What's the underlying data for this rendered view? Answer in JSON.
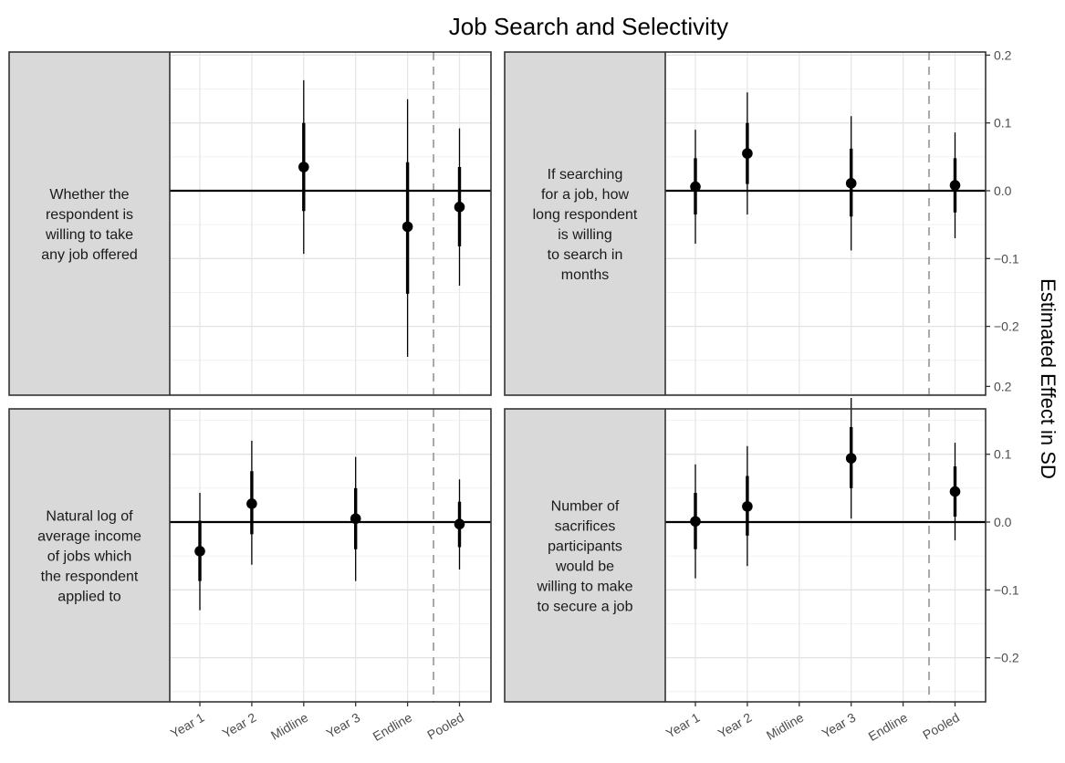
{
  "chart_data": {
    "type": "scatter",
    "title": "Job Search and Selectivity",
    "ylabel": "Estimated Effect in SD",
    "xlabel": "",
    "categories": [
      "Year 1",
      "Year 2",
      "Midline",
      "Year 3",
      "Endline",
      "Pooled"
    ],
    "yticks": [
      0.2,
      0.1,
      0.0,
      -0.1,
      -0.2
    ],
    "ytick_labels": [
      "0.2",
      "0.1",
      "0.0",
      "−0.1",
      "−0.2"
    ],
    "ylim": [
      -0.265,
      0.2
    ],
    "grid": true,
    "reference_line_y": 0,
    "dashed_separator_between": [
      "Endline",
      "Pooled"
    ],
    "panels": [
      {
        "label_lines": [
          "Whether the",
          "respondent is",
          "willing to take",
          "any job offered"
        ],
        "points": [
          {
            "x": "Midline",
            "estimate": 0.035,
            "ci90": [
              -0.03,
              0.1
            ],
            "ci95": [
              -0.093,
              0.163
            ]
          },
          {
            "x": "Endline",
            "estimate": -0.053,
            "ci90": [
              -0.152,
              0.042
            ],
            "ci95": [
              -0.245,
              0.135
            ]
          },
          {
            "x": "Pooled",
            "estimate": -0.024,
            "ci90": [
              -0.082,
              0.035
            ],
            "ci95": [
              -0.14,
              0.092
            ]
          }
        ]
      },
      {
        "label_lines": [
          "If searching",
          "for a job, how",
          "long respondent",
          "is willing",
          "to search in",
          "months"
        ],
        "points": [
          {
            "x": "Year 1",
            "estimate": 0.006,
            "ci90": [
              -0.035,
              0.048
            ],
            "ci95": [
              -0.078,
              0.09
            ]
          },
          {
            "x": "Year 2",
            "estimate": 0.055,
            "ci90": [
              0.01,
              0.1
            ],
            "ci95": [
              -0.035,
              0.145
            ]
          },
          {
            "x": "Year 3",
            "estimate": 0.011,
            "ci90": [
              -0.038,
              0.062
            ],
            "ci95": [
              -0.088,
              0.11
            ]
          },
          {
            "x": "Pooled",
            "estimate": 0.008,
            "ci90": [
              -0.032,
              0.048
            ],
            "ci95": [
              -0.07,
              0.086
            ]
          }
        ]
      },
      {
        "label_lines": [
          "Natural log of",
          "average income",
          "of jobs which",
          "the respondent",
          "applied to"
        ],
        "points": [
          {
            "x": "Year 1",
            "estimate": -0.043,
            "ci90": [
              -0.087,
              0.002
            ],
            "ci95": [
              -0.13,
              0.043
            ]
          },
          {
            "x": "Year 2",
            "estimate": 0.027,
            "ci90": [
              -0.018,
              0.075
            ],
            "ci95": [
              -0.063,
              0.12
            ]
          },
          {
            "x": "Year 3",
            "estimate": 0.005,
            "ci90": [
              -0.04,
              0.05
            ],
            "ci95": [
              -0.087,
              0.096
            ]
          },
          {
            "x": "Pooled",
            "estimate": -0.003,
            "ci90": [
              -0.037,
              0.03
            ],
            "ci95": [
              -0.07,
              0.063
            ]
          }
        ]
      },
      {
        "label_lines": [
          "Number of",
          "sacrifices",
          "participants",
          "would be",
          "willing to make",
          "to secure a job"
        ],
        "points": [
          {
            "x": "Year 1",
            "estimate": 0.001,
            "ci90": [
              -0.04,
              0.043
            ],
            "ci95": [
              -0.083,
              0.085
            ]
          },
          {
            "x": "Year 2",
            "estimate": 0.023,
            "ci90": [
              -0.02,
              0.068
            ],
            "ci95": [
              -0.065,
              0.112
            ]
          },
          {
            "x": "Year 3",
            "estimate": 0.094,
            "ci90": [
              0.05,
              0.14
            ],
            "ci95": [
              0.005,
              0.183
            ]
          },
          {
            "x": "Pooled",
            "estimate": 0.045,
            "ci90": [
              0.008,
              0.082
            ],
            "ci95": [
              -0.027,
              0.117
            ]
          }
        ]
      }
    ]
  }
}
